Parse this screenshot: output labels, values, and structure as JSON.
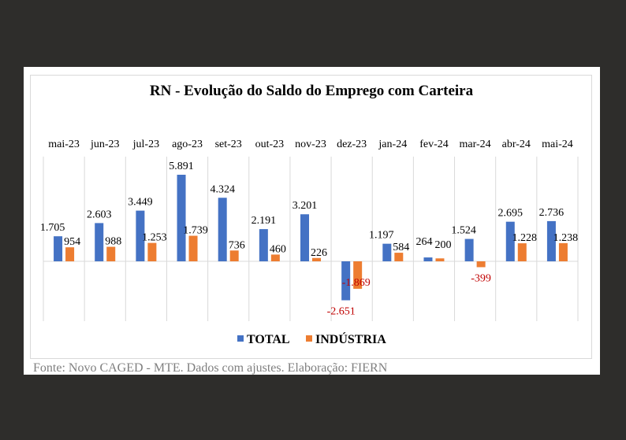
{
  "chart_data": {
    "type": "bar",
    "title": "RN - Evolução do Saldo do Emprego com Carteira",
    "categories": [
      "mai-23",
      "jun-23",
      "jul-23",
      "ago-23",
      "set-23",
      "out-23",
      "nov-23",
      "dez-23",
      "jan-24",
      "fev-24",
      "mar-24",
      "abr-24",
      "mai-24"
    ],
    "series": [
      {
        "name": "TOTAL",
        "color": "#4472c4",
        "values": [
          1705,
          2603,
          3449,
          5891,
          4324,
          2191,
          3201,
          -2651,
          1197,
          264,
          1524,
          2695,
          2736
        ],
        "labels": [
          "1.705",
          "2.603",
          "3.449",
          "5.891",
          "4.324",
          "2.191",
          "3.201",
          "-2.651",
          "1.197",
          "264",
          "1.524",
          "2.695",
          "2.736"
        ]
      },
      {
        "name": "INDÚSTRIA",
        "color": "#ed7d31",
        "values": [
          954,
          988,
          1253,
          1739,
          736,
          460,
          226,
          -1869,
          584,
          200,
          -399,
          1228,
          1238
        ],
        "labels": [
          "954",
          "988",
          "1.253",
          "1.739",
          "736",
          "460",
          "226",
          "-1.869",
          "584",
          "200",
          "-399",
          "1.228",
          "1.238"
        ]
      }
    ],
    "negative_label_color": "#c00000",
    "category_axis_position": "top",
    "vertical_gridlines": true,
    "legend_position": "bottom"
  },
  "source_note": "Fonte: Novo CAGED - MTE. Dados com ajustes. Elaboração: FIERN"
}
